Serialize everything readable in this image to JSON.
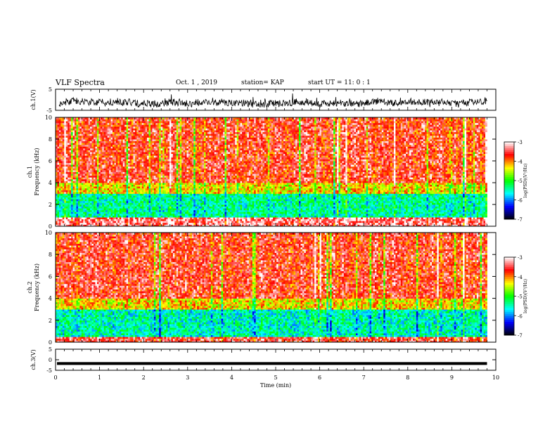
{
  "header": {
    "title": "VLF Spectra",
    "date": "Oct. 1 , 2019",
    "station": "station= KAP",
    "start": "start  UT =   11: 0  : 1"
  },
  "chart_data": [
    {
      "type": "line",
      "panel": "ch1-waveform",
      "ylabel": "ch.1(V)",
      "xlim": [
        0,
        10
      ],
      "ylim": [
        -5,
        5
      ],
      "yticks": [
        "5",
        "-5"
      ],
      "series": [
        {
          "trace": "noisy waveform centred near -1 V",
          "level": -1.5,
          "range": [
            -4.5,
            3
          ]
        }
      ]
    },
    {
      "type": "heatmap",
      "panel": "ch1-spectrogram",
      "ylabel": "ch.1\nFrequency (kHz)",
      "ylabel_lines": [
        "ch.1",
        "Frequency (kHz)"
      ],
      "xlim": [
        0,
        9.8
      ],
      "ylim": [
        0,
        10
      ],
      "yticks": [
        "0",
        "2",
        "4",
        "6",
        "8",
        "10"
      ],
      "colorbar": {
        "label": "log(PSD)(V²/Hz)",
        "range": [
          -7,
          -3
        ],
        "ticks": [
          "-3",
          "-4",
          "-5",
          "-6",
          "-7"
        ]
      },
      "description_bands": [
        {
          "freq_khz": [
            0,
            0.9
          ],
          "log_psd": -3.3
        },
        {
          "freq_khz": [
            0.9,
            3.0
          ],
          "log_psd": -5.4
        },
        {
          "freq_khz": [
            3.0,
            4.0
          ],
          "log_psd": -4.3
        },
        {
          "freq_khz": [
            4.0,
            10.0
          ],
          "log_psd": -3.6
        }
      ]
    },
    {
      "type": "heatmap",
      "panel": "ch2-spectrogram",
      "ylabel": "ch.2\nFrequency (kHz)",
      "ylabel_lines": [
        "ch.2",
        "Frequency (kHz)"
      ],
      "xlim": [
        0,
        9.8
      ],
      "ylim": [
        0,
        10
      ],
      "yticks": [
        "0",
        "2",
        "4",
        "6",
        "8",
        "10"
      ],
      "colorbar": {
        "label": "log(PSD)(V²/Hz)",
        "range": [
          -7,
          -3
        ],
        "ticks": [
          "-3",
          "-4",
          "-5",
          "-6",
          "-7"
        ]
      },
      "description_bands": [
        {
          "freq_khz": [
            0,
            0.5
          ],
          "log_psd": -3.5
        },
        {
          "freq_khz": [
            0.5,
            3.0
          ],
          "log_psd": -5.5
        },
        {
          "freq_khz": [
            3.0,
            4.0
          ],
          "log_psd": -4.3
        },
        {
          "freq_khz": [
            4.0,
            10.0
          ],
          "log_psd": -3.6
        }
      ]
    },
    {
      "type": "line",
      "panel": "ch3-waveform",
      "ylabel": "ch.3(V)",
      "xlim": [
        0,
        10
      ],
      "ylim": [
        -5,
        5
      ],
      "yticks": [
        "5",
        "0",
        "-5"
      ],
      "series": [
        {
          "trace": "flat thick line",
          "level": -1.8
        }
      ]
    }
  ],
  "xaxis": {
    "label": "Time (min)",
    "ticks": [
      "0",
      "1",
      "2",
      "3",
      "4",
      "5",
      "6",
      "7",
      "8",
      "9",
      "10"
    ]
  },
  "colors": {
    "ink": "#000000",
    "colormap": [
      "#000000",
      "#0000ff",
      "#00ffff",
      "#00ff00",
      "#ffff00",
      "#ff0000",
      "#ffffff"
    ]
  }
}
